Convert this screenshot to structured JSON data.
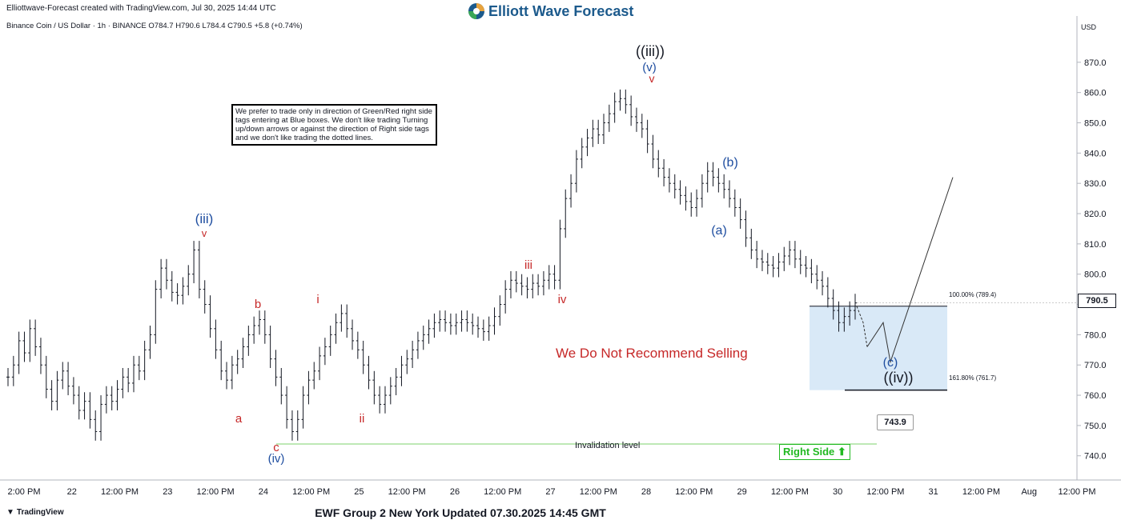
{
  "header": {
    "created_by": "Elliottwave-Forecast created with TradingView.com, Jul 30, 2025 14:44 UTC",
    "symbol_line": "Binance Coin / US Dollar · 1h · BINANCE  O784.7  H790.6  L784.4  C790.5  +5.8 (+0.74%)",
    "brand": "Elliott Wave Forecast",
    "currency": "USD"
  },
  "footer": {
    "title": "EWF Group 2 New York Updated 07.30.2025 14:45 GMT",
    "tv_logo": "TradingView"
  },
  "annotations": {
    "note": "We prefer to trade only in direction of Green/Red right side tags entering at Blue boxes. We don't like trading Turning up/down arrows or against the direction of Right side tags and we don't like trading the dotted lines.",
    "warning": "We Do Not Recommend Selling",
    "right_side": "Right Side",
    "invalidation": "Invalidation level",
    "invalidation_value": "743.9",
    "current_price": "790.5",
    "fib_100": "100.00% (789.4)",
    "fib_161": "161.80% (761.7)"
  },
  "wave_labels": [
    {
      "text": "((iii))",
      "color": "#131722"
    },
    {
      "text": "(v)",
      "color": "#1f4ea0"
    },
    {
      "text": "v",
      "color": "#c62828"
    },
    {
      "text": "(iii)",
      "color": "#1f4ea0"
    },
    {
      "text": "v",
      "color": "#c62828"
    },
    {
      "text": "a",
      "color": "#c62828"
    },
    {
      "text": "b",
      "color": "#c62828"
    },
    {
      "text": "c",
      "color": "#c62828"
    },
    {
      "text": "(iv)",
      "color": "#1f4ea0"
    },
    {
      "text": "i",
      "color": "#c62828"
    },
    {
      "text": "ii",
      "color": "#c62828"
    },
    {
      "text": "iii",
      "color": "#c62828"
    },
    {
      "text": "iv",
      "color": "#c62828"
    },
    {
      "text": "(a)",
      "color": "#1f4ea0"
    },
    {
      "text": "(b)",
      "color": "#1f4ea0"
    },
    {
      "text": "(c)",
      "color": "#1f4ea0"
    },
    {
      "text": "((iv))",
      "color": "#131722"
    }
  ],
  "chart_data": {
    "type": "line",
    "title": "Binance Coin / US Dollar · 1h · BINANCE",
    "xlabel": "",
    "ylabel": "",
    "ylim": [
      732,
      880
    ],
    "y_ticks": [
      740,
      750,
      760,
      770,
      780,
      790,
      800,
      810,
      820,
      830,
      840,
      850,
      860,
      870
    ],
    "x_ticks": [
      "2:00 PM",
      "22",
      "12:00 PM",
      "23",
      "12:00 PM",
      "24",
      "12:00 PM",
      "25",
      "12:00 PM",
      "26",
      "12:00 PM",
      "27",
      "12:00 PM",
      "28",
      "12:00 PM",
      "29",
      "12:00 PM",
      "30",
      "12:00 PM",
      "31",
      "12:00 PM",
      "Aug",
      "12:00 PM"
    ],
    "series": [
      {
        "values": [
          766,
          770,
          778,
          774,
          782,
          776,
          770,
          762,
          758,
          765,
          768,
          763,
          760,
          755,
          758,
          752,
          748,
          757,
          760,
          758,
          762,
          766,
          764,
          770,
          768,
          775,
          780,
          795,
          802,
          798,
          794,
          793,
          796,
          800,
          808,
          795,
          790,
          782,
          775,
          768,
          765,
          770,
          772,
          776,
          780,
          783,
          785,
          780,
          772,
          766,
          760,
          752,
          748,
          752,
          760,
          765,
          768,
          773,
          776,
          780,
          784,
          787,
          782,
          778,
          775,
          770,
          765,
          760,
          757,
          760,
          763,
          766,
          770,
          772,
          775,
          778,
          780,
          782,
          784,
          785,
          784,
          783,
          784,
          785,
          784,
          783,
          782,
          781,
          783,
          786,
          790,
          795,
          798,
          797,
          796,
          795,
          797,
          796,
          798,
          800,
          798,
          815,
          825,
          830,
          838,
          842,
          845,
          848,
          846,
          850,
          853,
          857,
          858,
          856,
          852,
          850,
          848,
          843,
          838,
          835,
          832,
          830,
          828,
          826,
          824,
          822,
          825,
          830,
          834,
          832,
          830,
          828,
          825,
          822,
          818,
          812,
          808,
          805,
          804,
          803,
          802,
          804,
          806,
          808,
          805,
          803,
          802,
          800,
          798,
          796,
          792,
          788,
          784,
          786,
          788,
          790.5
        ],
        "color": "#131722"
      }
    ],
    "projection": [
      789.4,
      784,
      776,
      784,
      771,
      832
    ],
    "fib_box": {
      "top": 789.4,
      "bottom": 761.7,
      "color": "#cfe3f5"
    },
    "invalidation_level": 743.9,
    "current_price": 790.5,
    "grid": false,
    "legend": "none"
  }
}
